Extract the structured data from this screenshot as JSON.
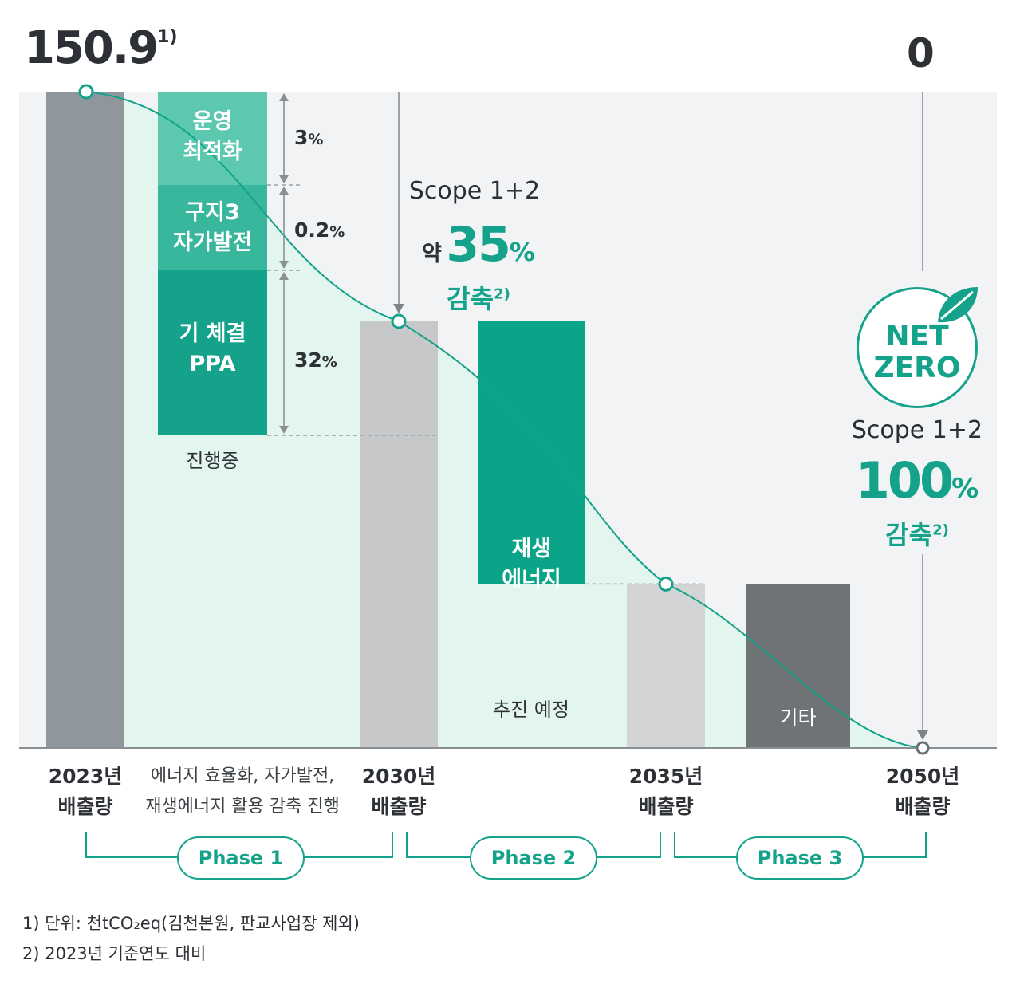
{
  "chart_data": {
    "type": "bar",
    "subtype": "waterfall",
    "start_value": "150.9",
    "start_value_note": "1)",
    "end_value": "0",
    "bars": [
      {
        "label_year": "2023년",
        "label_sub": "배출량",
        "value": 150.9,
        "color": "#8f979d"
      },
      {
        "label_year": "2030년",
        "label_sub": "배출량",
        "value": 98.1,
        "color": "#c7c8c9"
      },
      {
        "label_year": "2035년",
        "label_sub": "배출량",
        "value": 37.7,
        "color": "#d3d4d5"
      },
      {
        "label_year": "2050년",
        "label_sub": "배출량",
        "value": 0,
        "color": "#8f979d"
      }
    ],
    "phase1_segments": [
      {
        "label": "운영 최적화",
        "lines": [
          "운영",
          "최적화"
        ],
        "percent": "3",
        "color": "#5dc8b0"
      },
      {
        "label": "구지3 자가발전",
        "lines": [
          "구지3",
          "자가발전"
        ],
        "percent": "0.2",
        "color": "#38b79c"
      },
      {
        "label": "기 체결 PPA",
        "lines": [
          "기 체결",
          "PPA"
        ],
        "percent": "32",
        "color": "#14a38a"
      }
    ],
    "phase1_status": "진행중",
    "phase2_segment": {
      "lines": [
        "재생",
        "에너지"
      ],
      "color": "#0aa488"
    },
    "phase2_status": "추진 예정",
    "phase3_segment": {
      "label": "기타",
      "color": "#707376"
    },
    "phase1_desc": [
      "에너지 효율화, 자가발전,",
      "재생에너지 활용 감축 진행"
    ],
    "scope_2030": {
      "title": "Scope 1+2",
      "prefix": "약",
      "value": "35",
      "unit": "%",
      "suffix": "감축",
      "note": "2)"
    },
    "scope_2050": {
      "title": "Scope 1+2",
      "value": "100",
      "unit": "%",
      "suffix": "감축",
      "note": "2)"
    },
    "net_zero": [
      "NET",
      "ZERO"
    ],
    "phases": [
      "Phase 1",
      "Phase 2",
      "Phase 3"
    ],
    "percent_sign": "%"
  },
  "footnotes": [
    "1) 단위: 천tCO₂eq(김천본원, 판교사업장 제외)",
    "2) 2023년 기준연도 대비"
  ],
  "colors": {
    "accent": "#14a38a",
    "bar_dark": "#8f979d",
    "bar_light": "#c7c8c9",
    "area": "#e3f5ef",
    "panel": "#f2f3f4"
  }
}
